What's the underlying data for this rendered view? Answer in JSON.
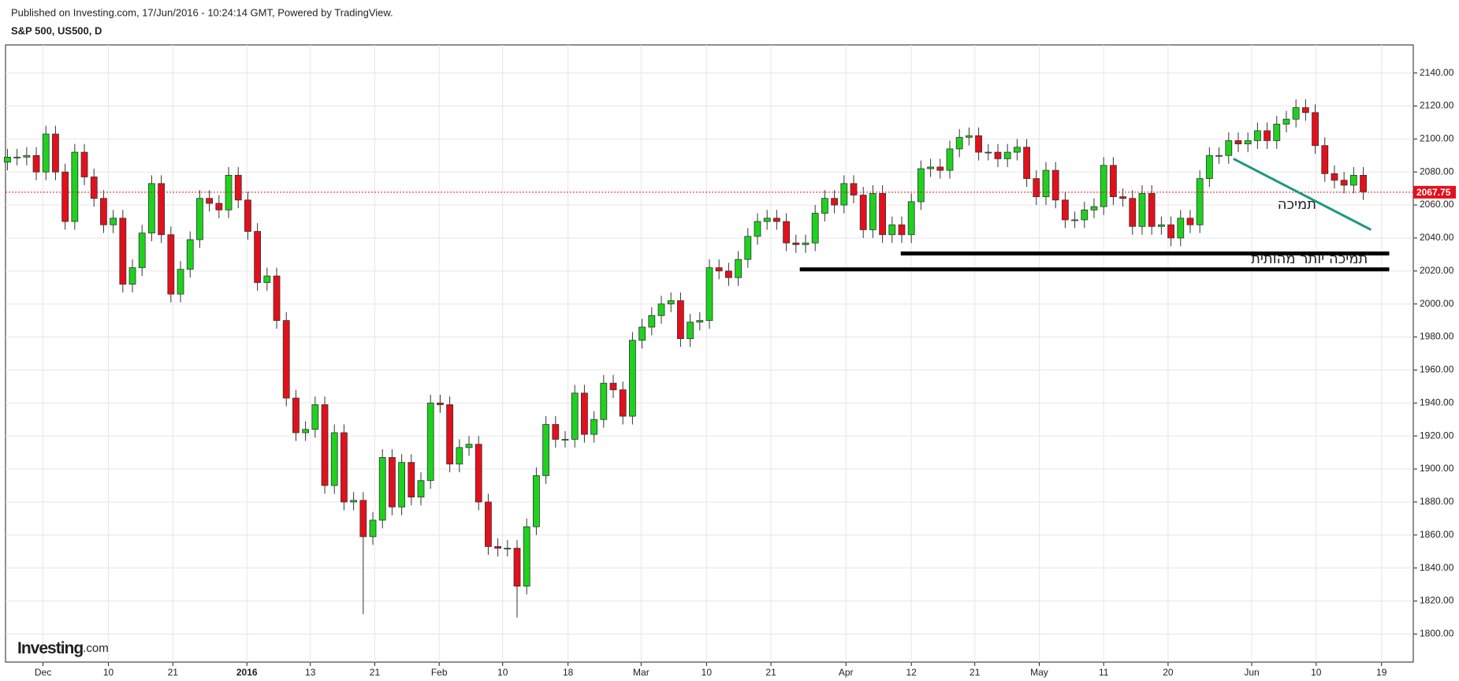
{
  "header": {
    "published": "Published on Investing.com, 17/Jun/2016 - 10:24:14 GMT, Powered by TradingView.",
    "symbol": "S&P 500, US500, D"
  },
  "logo": [
    "Investing",
    ".com"
  ],
  "chart_data": {
    "type": "candlestick",
    "open": [
      2086,
      2089,
      2089,
      2090,
      2080,
      2103,
      2080,
      2050,
      2092,
      2077,
      2064,
      2048,
      2052,
      2012,
      2022,
      2043,
      2073,
      2042,
      2006,
      2021,
      2039,
      2064,
      2061,
      2057,
      2078,
      2063,
      2044,
      2013,
      2017,
      1990,
      1943,
      1922,
      1924,
      1939,
      1890,
      1922,
      1880,
      1881,
      1859,
      1869,
      1907,
      1877,
      1904,
      1883,
      1893,
      1940,
      1939,
      1903,
      1913,
      1915,
      1880,
      1853,
      1852,
      1852,
      1829,
      1865,
      1896,
      1927,
      1918,
      1918,
      1946,
      1921,
      1930,
      1952,
      1948,
      1932,
      1978,
      1986,
      1993,
      2000,
      2002,
      1979,
      1989,
      1990,
      2022,
      2020,
      2016,
      2027,
      2041,
      2050,
      2052,
      2050,
      2037,
      2036,
      2037,
      2055,
      2064,
      2060,
      2073,
      2066,
      2045,
      2067,
      2042,
      2048,
      2042,
      2062,
      2082,
      2083,
      2081,
      2094,
      2101,
      2102,
      2092,
      2092,
      2088,
      2092,
      2095,
      2076,
      2065,
      2081,
      2063,
      2051,
      2051,
      2057,
      2059,
      2084,
      2065,
      2064,
      2047,
      2067,
      2047,
      2048,
      2040,
      2052,
      2048,
      2076,
      2090,
      2090,
      2099,
      2097,
      2099,
      2105,
      2099,
      2109,
      2112,
      2119,
      2116,
      2096,
      2079,
      2075,
      2072,
      2078
    ],
    "high": [
      2094,
      2094,
      2095,
      2095,
      2108,
      2108,
      2085,
      2097,
      2097,
      2082,
      2069,
      2057,
      2057,
      2027,
      2048,
      2078,
      2078,
      2047,
      2026,
      2044,
      2069,
      2069,
      2066,
      2083,
      2083,
      2068,
      2049,
      2022,
      2022,
      1995,
      1948,
      1929,
      1944,
      1944,
      1927,
      1927,
      1886,
      1886,
      1874,
      1912,
      1912,
      1909,
      1909,
      1898,
      1945,
      1945,
      1944,
      1918,
      1920,
      1920,
      1885,
      1858,
      1857,
      1857,
      1870,
      1901,
      1932,
      1932,
      1923,
      1951,
      1951,
      1935,
      1957,
      1957,
      1953,
      1983,
      1991,
      1998,
      2005,
      2007,
      2007,
      1994,
      1995,
      2027,
      2027,
      2025,
      2032,
      2046,
      2055,
      2057,
      2057,
      2055,
      2042,
      2042,
      2060,
      2069,
      2069,
      2078,
      2078,
      2071,
      2072,
      2072,
      2053,
      2053,
      2067,
      2087,
      2088,
      2088,
      2099,
      2106,
      2107,
      2107,
      2097,
      2097,
      2097,
      2100,
      2100,
      2081,
      2086,
      2086,
      2068,
      2056,
      2062,
      2064,
      2089,
      2089,
      2070,
      2069,
      2072,
      2072,
      2053,
      2053,
      2057,
      2057,
      2081,
      2095,
      2095,
      2104,
      2104,
      2104,
      2110,
      2110,
      2114,
      2117,
      2124,
      2124,
      2121,
      2101,
      2084,
      2080,
      2083,
      2083
    ],
    "low": [
      2081,
      2084,
      2084,
      2075,
      2075,
      2075,
      2045,
      2045,
      2072,
      2059,
      2043,
      2043,
      2007,
      2007,
      2017,
      2038,
      2037,
      2001,
      2001,
      2016,
      2034,
      2056,
      2052,
      2052,
      2058,
      2039,
      2008,
      2008,
      1985,
      1938,
      1917,
      1917,
      1919,
      1885,
      1885,
      1875,
      1875,
      1812,
      1854,
      1864,
      1872,
      1872,
      1878,
      1878,
      1888,
      1934,
      1898,
      1898,
      1908,
      1875,
      1848,
      1847,
      1847,
      1810,
      1824,
      1860,
      1891,
      1913,
      1913,
      1913,
      1916,
      1916,
      1925,
      1943,
      1927,
      1927,
      1973,
      1981,
      1988,
      1995,
      1974,
      1974,
      1984,
      1985,
      2015,
      2011,
      2011,
      2022,
      2036,
      2045,
      2045,
      2032,
      2031,
      2031,
      2032,
      2050,
      2055,
      2055,
      2061,
      2040,
      2040,
      2037,
      2037,
      2037,
      2037,
      2057,
      2077,
      2076,
      2076,
      2089,
      2096,
      2087,
      2087,
      2083,
      2083,
      2087,
      2071,
      2060,
      2060,
      2058,
      2046,
      2046,
      2046,
      2052,
      2054,
      2060,
      2059,
      2042,
      2042,
      2042,
      2042,
      2035,
      2035,
      2043,
      2043,
      2071,
      2085,
      2085,
      2092,
      2092,
      2094,
      2094,
      2094,
      2104,
      2107,
      2111,
      2091,
      2074,
      2070,
      2067,
      2067,
      2063
    ],
    "close": [
      2089,
      2089,
      2090,
      2080,
      2103,
      2080,
      2050,
      2092,
      2077,
      2064,
      2048,
      2052,
      2012,
      2022,
      2043,
      2073,
      2042,
      2006,
      2021,
      2039,
      2064,
      2061,
      2057,
      2078,
      2063,
      2044,
      2013,
      2017,
      1990,
      1943,
      1922,
      1924,
      1939,
      1890,
      1922,
      1880,
      1881,
      1859,
      1869,
      1907,
      1877,
      1904,
      1883,
      1893,
      1940,
      1939,
      1903,
      1913,
      1915,
      1880,
      1853,
      1852,
      1852,
      1829,
      1865,
      1896,
      1927,
      1918,
      1918,
      1946,
      1921,
      1930,
      1952,
      1948,
      1932,
      1978,
      1986,
      1993,
      2000,
      2002,
      1979,
      1989,
      1990,
      2022,
      2020,
      2016,
      2027,
      2041,
      2050,
      2052,
      2050,
      2037,
      2036,
      2037,
      2055,
      2064,
      2060,
      2073,
      2066,
      2045,
      2067,
      2042,
      2048,
      2042,
      2062,
      2082,
      2083,
      2081,
      2094,
      2101,
      2102,
      2092,
      2092,
      2088,
      2092,
      2095,
      2076,
      2065,
      2081,
      2063,
      2051,
      2051,
      2057,
      2059,
      2084,
      2065,
      2064,
      2047,
      2067,
      2047,
      2048,
      2040,
      2052,
      2048,
      2076,
      2090,
      2090,
      2099,
      2097,
      2099,
      2105,
      2099,
      2109,
      2112,
      2119,
      2116,
      2096,
      2079,
      2075,
      2072,
      2078,
      2068
    ],
    "up_color": "#1ed21e",
    "down_color": "#e3101c",
    "xlim": [
      -0.2,
      146.2
    ],
    "ylim": [
      1783,
      2157
    ],
    "yticks": [
      {
        "value": 1800,
        "label": "1800.00"
      },
      {
        "value": 1820,
        "label": "1820.00"
      },
      {
        "value": 1840,
        "label": "1840.00"
      },
      {
        "value": 1860,
        "label": "1860.00"
      },
      {
        "value": 1880,
        "label": "1880.00"
      },
      {
        "value": 1900,
        "label": "1900.00"
      },
      {
        "value": 1920,
        "label": "1920.00"
      },
      {
        "value": 1940,
        "label": "1940.00"
      },
      {
        "value": 1960,
        "label": "1960.00"
      },
      {
        "value": 1980,
        "label": "1980.00"
      },
      {
        "value": 2000,
        "label": "2000.00"
      },
      {
        "value": 2020,
        "label": "2020.00"
      },
      {
        "value": 2040,
        "label": "2040.00"
      },
      {
        "value": 2060,
        "label": "2060.00"
      },
      {
        "value": 2080,
        "label": "2080.00"
      },
      {
        "value": 2100,
        "label": "2100.00"
      },
      {
        "value": 2120,
        "label": "2120.00"
      },
      {
        "value": 2140,
        "label": "2140.00"
      }
    ],
    "xticks": [
      {
        "value": 3.7,
        "label": "Dec"
      },
      {
        "value": 10.5,
        "label": "10"
      },
      {
        "value": 17.2,
        "label": "21"
      },
      {
        "value": 24.9,
        "label": "2016"
      },
      {
        "value": 31.5,
        "label": "13"
      },
      {
        "value": 38.2,
        "label": "21"
      },
      {
        "value": 44.9,
        "label": "Feb"
      },
      {
        "value": 51.5,
        "label": "10"
      },
      {
        "value": 58.3,
        "label": "18"
      },
      {
        "value": 65.9,
        "label": "Mar"
      },
      {
        "value": 72.7,
        "label": "10"
      },
      {
        "value": 79.4,
        "label": "21"
      },
      {
        "value": 87.2,
        "label": "Apr"
      },
      {
        "value": 94,
        "label": "12"
      },
      {
        "value": 100.6,
        "label": "21"
      },
      {
        "value": 107.3,
        "label": "May"
      },
      {
        "value": 114,
        "label": "11"
      },
      {
        "value": 120.7,
        "label": "20"
      },
      {
        "value": 129.4,
        "label": "Jun"
      },
      {
        "value": 136.1,
        "label": "10"
      },
      {
        "value": 142.9,
        "label": "19"
      }
    ],
    "bold_xtick": "2016",
    "grid": true,
    "last_price": 2067.75,
    "last_price_color": "#e3101c",
    "annotations": [
      {
        "type": "line",
        "color": "#1a9a7e",
        "x": [
          127.5,
          141.8
        ],
        "y": [
          2088,
          2045
        ]
      },
      {
        "type": "line",
        "color": "#000000",
        "x": [
          92.9,
          143.7
        ],
        "y": [
          2030.6,
          2030.6
        ]
      },
      {
        "type": "line",
        "color": "#000000",
        "x": [
          82.4,
          143.7
        ],
        "y": [
          2021,
          2021
        ]
      },
      {
        "type": "text",
        "text": "תמיכה",
        "x": 134.1,
        "y": 2060
      },
      {
        "type": "text",
        "text": "תמיכה יותר מהותית",
        "x": 135.4,
        "y": 2027
      }
    ]
  }
}
